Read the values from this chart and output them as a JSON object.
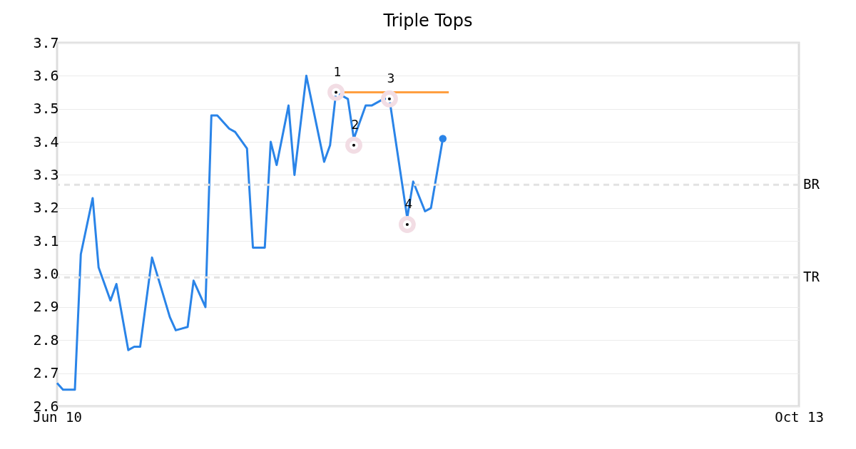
{
  "chart_data": {
    "type": "line",
    "title": "Triple Tops",
    "xlim": [
      "--06-10",
      "--10-13"
    ],
    "xticks": [
      {
        "value": "--06-10",
        "label": "Jun 10"
      },
      {
        "value": "--10-13",
        "label": "Oct 13"
      }
    ],
    "ylim": [
      2.6,
      3.7
    ],
    "yticks": [
      2.6,
      2.7,
      2.8,
      2.9,
      {
        "value": 3,
        "label": "3.0"
      },
      3.1,
      3.2,
      3.3,
      3.4,
      3.5,
      3.6,
      3.7
    ],
    "grid": "y",
    "series": [
      {
        "type": "line",
        "color": "#2a84e8",
        "x": [
          "--06-10",
          "--06-11",
          "--06-13",
          "--06-14",
          "--06-16",
          "--06-17",
          "--06-19",
          "--06-20",
          "--06-22",
          "--06-23",
          "--06-24",
          "--06-26",
          "--06-27",
          "--06-29",
          "--06-30",
          "--07-02",
          "--07-03",
          "--07-05",
          "--07-06",
          "--07-07",
          "--07-09",
          "--07-10",
          "--07-12",
          "--07-13",
          "--07-15",
          "--07-16",
          "--07-17",
          "--07-19",
          "--07-20",
          "--07-22",
          "--07-25",
          "--07-26",
          "--07-27",
          "--07-29",
          "--07-30",
          "--08-01",
          "--08-02",
          "--08-04",
          "--08-05",
          "--08-08",
          "--08-09",
          "--08-11",
          "--08-12",
          "--08-14"
        ],
        "values": [
          2.67,
          2.65,
          2.65,
          3.06,
          3.23,
          3.02,
          2.92,
          2.97,
          2.77,
          2.78,
          2.78,
          3.05,
          2.99,
          2.87,
          2.83,
          2.84,
          2.98,
          2.9,
          3.48,
          3.48,
          3.44,
          3.43,
          3.38,
          3.08,
          3.08,
          3.4,
          3.33,
          3.51,
          3.3,
          3.6,
          3.34,
          3.39,
          3.55,
          3.53,
          3.41,
          3.51,
          3.51,
          3.53,
          3.53,
          3.17,
          3.28,
          3.19,
          3.2,
          3.41
        ]
      },
      {
        "type": "line",
        "color": "#ff9f40",
        "x": [
          "--07-28",
          "--08-15"
        ],
        "values": [
          3.55,
          3.55
        ]
      },
      {
        "type": "scatter",
        "color": "#000000",
        "marker": "circle",
        "x": [
          "--07-27",
          "--07-30",
          "--08-05",
          "--08-08"
        ],
        "values": [
          3.55,
          3.39,
          3.53,
          3.15
        ]
      },
      {
        "type": "scatter",
        "color": "#2a84e8",
        "marker": "circle",
        "x": [
          "--08-14"
        ],
        "values": [
          3.41
        ]
      }
    ],
    "ref_lines": [
      {
        "axis": "y",
        "value": 3.27,
        "label": "BR",
        "color": "#e2e2e2",
        "line_style": "dashed"
      },
      {
        "axis": "y",
        "value": 2.99,
        "label": "TR",
        "color": "#e2e2e2",
        "line_style": "dashed"
      }
    ],
    "annotations": [
      {
        "text": "1",
        "x": "--07-27",
        "y": 3.55
      },
      {
        "text": "2",
        "x": "--07-30",
        "y": 3.39
      },
      {
        "text": "3",
        "x": "--08-05",
        "y": 3.53
      },
      {
        "text": "4",
        "x": "--08-08",
        "y": 3.15
      }
    ]
  }
}
